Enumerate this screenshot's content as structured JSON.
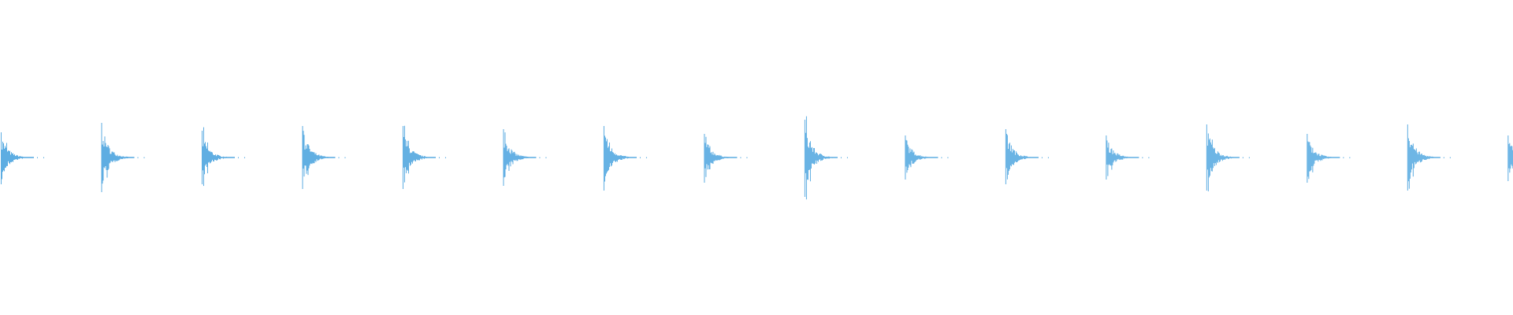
{
  "chart_data": {
    "type": "waveform",
    "title": "",
    "xlabel": "",
    "ylabel": "",
    "axes_visible": false,
    "grid": false,
    "ylim": [
      -1,
      1
    ],
    "color": "#5dade2",
    "background": "#ffffff",
    "burst_count": 16,
    "burst_period_fraction": 0.0664,
    "bursts": [
      {
        "index": 0,
        "peak_pos": 0.16,
        "peak_neg": -0.17
      },
      {
        "index": 1,
        "peak_pos": 0.22,
        "peak_neg": -0.22
      },
      {
        "index": 2,
        "peak_pos": 0.17,
        "peak_neg": -0.17
      },
      {
        "index": 3,
        "peak_pos": 0.2,
        "peak_neg": -0.2
      },
      {
        "index": 4,
        "peak_pos": 0.2,
        "peak_neg": -0.2
      },
      {
        "index": 5,
        "peak_pos": 0.18,
        "peak_neg": -0.18
      },
      {
        "index": 6,
        "peak_pos": 0.2,
        "peak_neg": -0.21
      },
      {
        "index": 7,
        "peak_pos": 0.15,
        "peak_neg": -0.16
      },
      {
        "index": 8,
        "peak_pos": 0.24,
        "peak_neg": -0.25
      },
      {
        "index": 9,
        "peak_pos": 0.14,
        "peak_neg": -0.14
      },
      {
        "index": 10,
        "peak_pos": 0.18,
        "peak_neg": -0.17
      },
      {
        "index": 11,
        "peak_pos": 0.14,
        "peak_neg": -0.14
      },
      {
        "index": 12,
        "peak_pos": 0.21,
        "peak_neg": -0.21
      },
      {
        "index": 13,
        "peak_pos": 0.15,
        "peak_neg": -0.16
      },
      {
        "index": 14,
        "peak_pos": 0.21,
        "peak_neg": -0.21
      },
      {
        "index": 15,
        "peak_pos": 0.14,
        "peak_neg": -0.15
      }
    ]
  }
}
